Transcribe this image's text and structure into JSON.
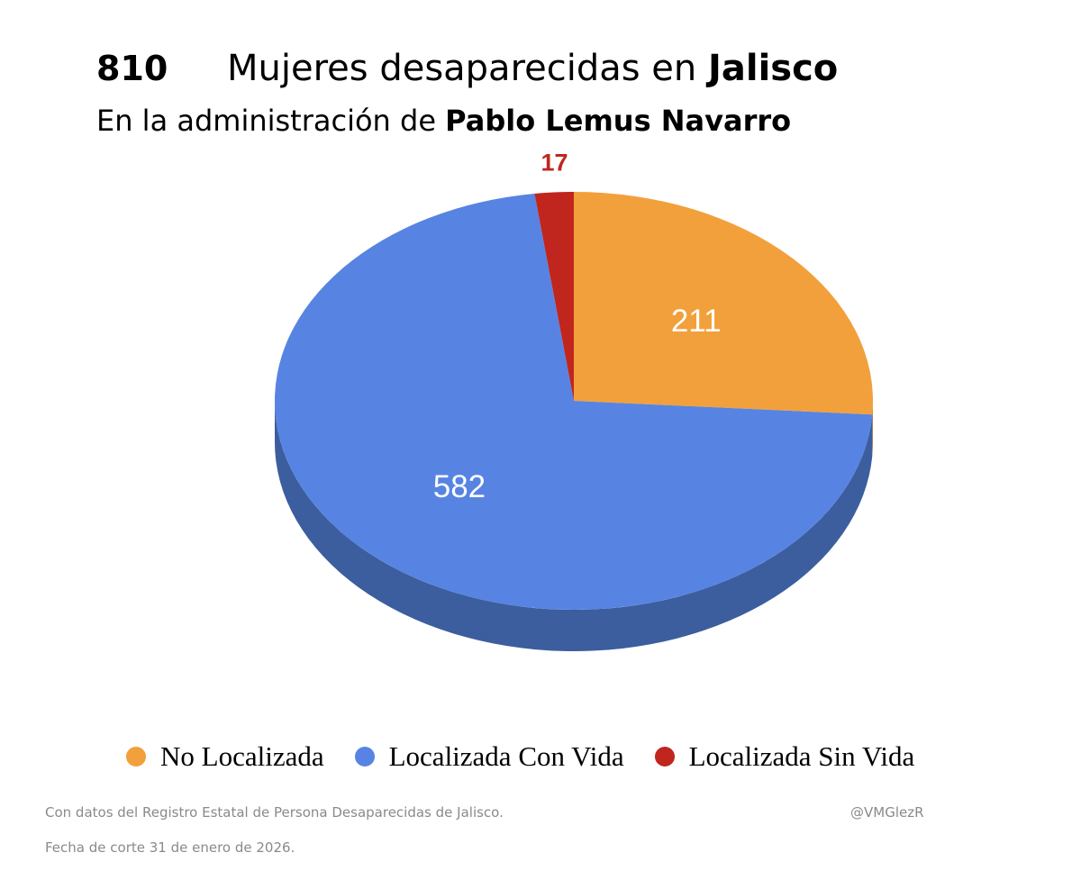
{
  "header": {
    "total": "810",
    "title_prefix": "Mujeres desaparecidas en ",
    "title_bold": "Jalisco",
    "subtitle_prefix": "En la administración de ",
    "subtitle_bold": "Pablo Lemus Navarro"
  },
  "chart_data": {
    "type": "pie",
    "title": "810 Mujeres desaparecidas en Jalisco",
    "subtitle": "En la administración de Pablo Lemus Navarro",
    "categories": [
      "No Localizada",
      "Localizada Con Vida",
      "Localizada Sin Vida"
    ],
    "values": [
      211,
      582,
      17
    ],
    "colors": [
      "#f2a03b",
      "#5784e2",
      "#c0261e"
    ],
    "side_colors": [
      "#b7772c",
      "#3c5e9e",
      "#8c1c16"
    ],
    "label_colors": [
      "#ffffff",
      "#ffffff",
      "#c0261e"
    ],
    "legend_position": "bottom"
  },
  "footer": {
    "source": "Con datos del Registro Estatal de Persona Desaparecidas de Jalisco.",
    "date": "Fecha de corte 31 de enero de 2026.",
    "handle": "@VMGlezR"
  }
}
